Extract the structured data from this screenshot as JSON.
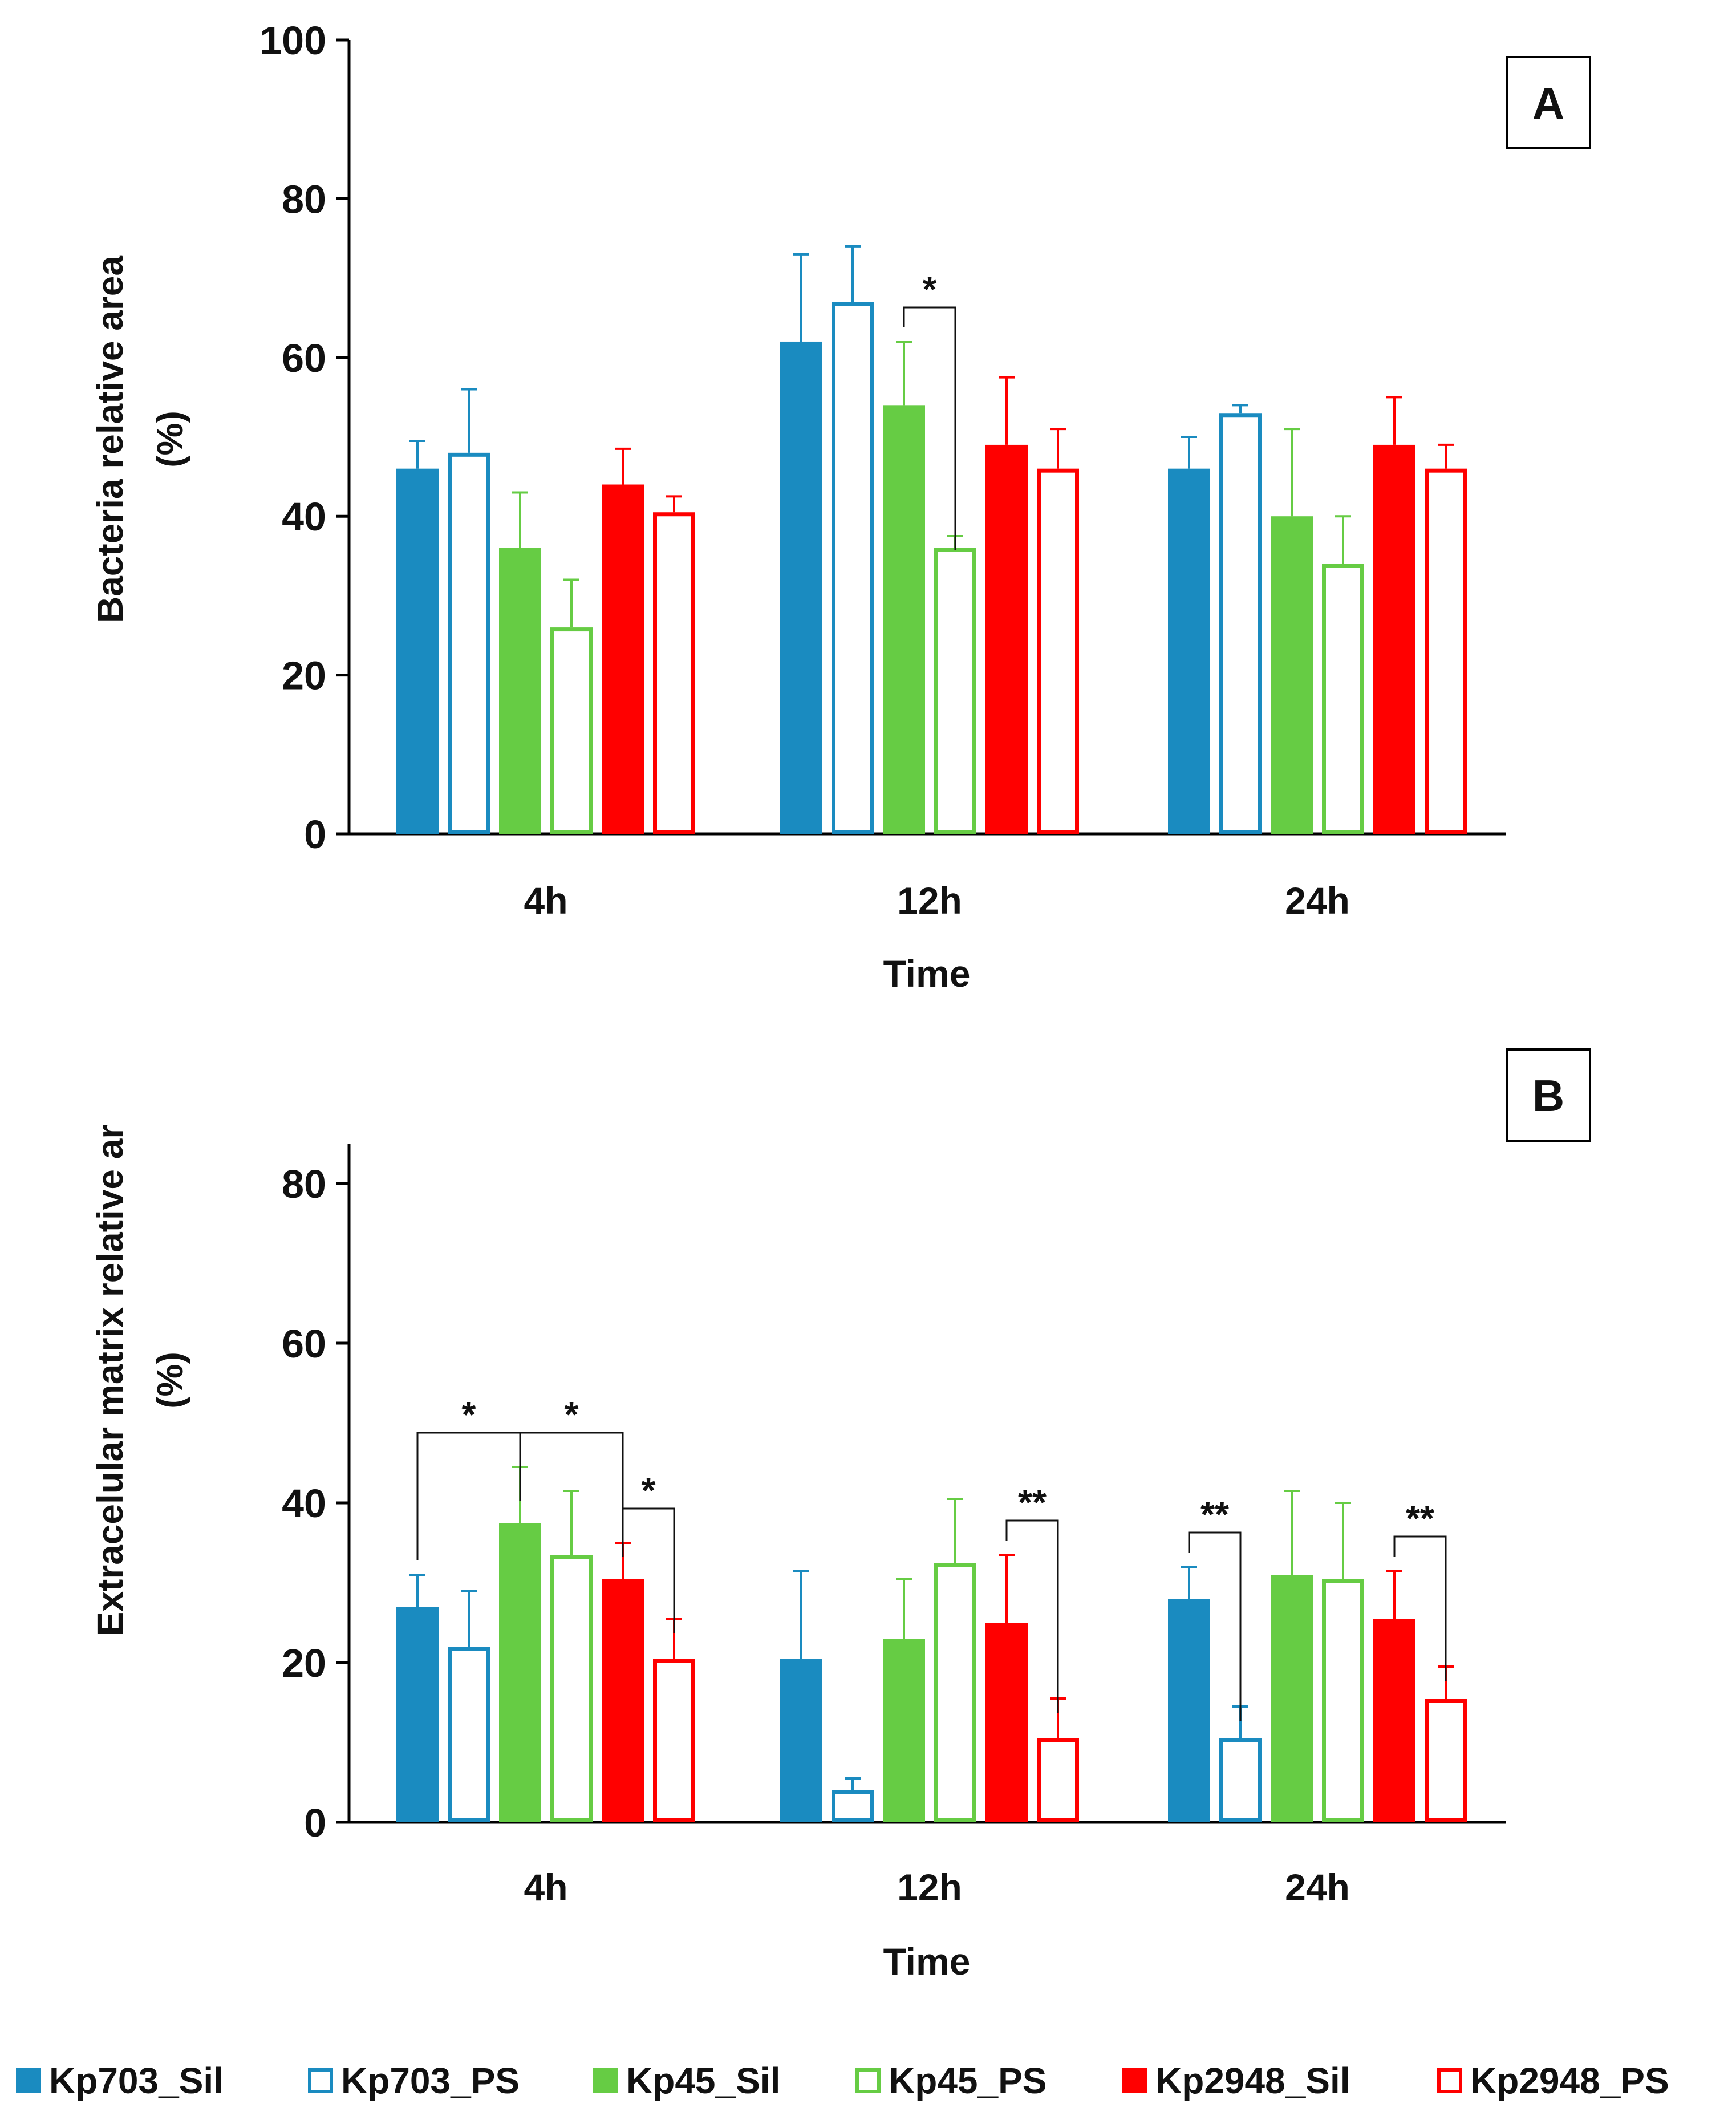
{
  "figure": {
    "legend": [
      {
        "key": "Kp703_Sil",
        "label": "Kp703_Sil",
        "color": "#1a8bc0",
        "filled": true
      },
      {
        "key": "Kp703_PS",
        "label": "Kp703_PS",
        "color": "#1a8bc0",
        "filled": false
      },
      {
        "key": "Kp45_Sil",
        "label": "Kp45_Sil",
        "color": "#66cc44",
        "filled": true
      },
      {
        "key": "Kp45_PS",
        "label": "Kp45_PS",
        "color": "#66cc44",
        "filled": false
      },
      {
        "key": "Kp2948_Sil",
        "label": "Kp2948_Sil",
        "color": "#ff0000",
        "filled": true
      },
      {
        "key": "Kp2948_PS",
        "label": "Kp2948_PS",
        "color": "#ff0000",
        "filled": false
      }
    ]
  },
  "chart_data": [
    {
      "type": "bar",
      "panel_label": "A",
      "categories": [
        "4h",
        "12h",
        "24h"
      ],
      "xlabel": "Time",
      "ylabel_line1": "Bacteria  relative area",
      "ylabel_line2": "(%)",
      "ylim": [
        0,
        100
      ],
      "yticks": [
        0,
        20,
        40,
        60,
        80,
        100
      ],
      "series": [
        {
          "name": "Kp703_Sil",
          "values": [
            46,
            62,
            46
          ],
          "errors": [
            3.5,
            11,
            4
          ]
        },
        {
          "name": "Kp703_PS",
          "values": [
            48,
            67,
            53
          ],
          "errors": [
            8,
            7,
            1
          ]
        },
        {
          "name": "Kp45_Sil",
          "values": [
            36,
            54,
            40
          ],
          "errors": [
            7,
            8,
            11
          ]
        },
        {
          "name": "Kp45_PS",
          "values": [
            26,
            36,
            34
          ],
          "errors": [
            6,
            1.5,
            6
          ]
        },
        {
          "name": "Kp2948_Sil",
          "values": [
            44,
            49,
            49
          ],
          "errors": [
            4.5,
            8.5,
            6
          ]
        },
        {
          "name": "Kp2948_PS",
          "values": [
            40.5,
            46,
            46
          ],
          "errors": [
            2,
            5,
            3
          ]
        }
      ],
      "significance": [
        {
          "group": 1,
          "from": 2,
          "to": 3,
          "label": "*"
        }
      ]
    },
    {
      "type": "bar",
      "panel_label": "B",
      "categories": [
        "4h",
        "12h",
        "24h"
      ],
      "xlabel": "Time",
      "ylabel_line1": "Extracelular matrix  relative ar",
      "ylabel_line2": "(%)",
      "ylim": [
        0,
        85
      ],
      "yticks": [
        0,
        20,
        40,
        60,
        80
      ],
      "series": [
        {
          "name": "Kp703_Sil",
          "values": [
            27,
            20.5,
            28
          ],
          "errors": [
            4,
            11,
            4
          ]
        },
        {
          "name": "Kp703_PS",
          "values": [
            22,
            4,
            10.5
          ],
          "errors": [
            7,
            1.5,
            4
          ]
        },
        {
          "name": "Kp45_Sil",
          "values": [
            37.5,
            23,
            31
          ],
          "errors": [
            7,
            7.5,
            10.5
          ]
        },
        {
          "name": "Kp45_PS",
          "values": [
            33.5,
            32.5,
            30.5
          ],
          "errors": [
            8,
            8,
            9.5
          ]
        },
        {
          "name": "Kp2948_Sil",
          "values": [
            30.5,
            25,
            25.5
          ],
          "errors": [
            4.5,
            8.5,
            6
          ]
        },
        {
          "name": "Kp2948_PS",
          "values": [
            20.5,
            10.5,
            15.5
          ],
          "errors": [
            5,
            5,
            4
          ]
        }
      ],
      "significance": [
        {
          "group": 0,
          "from": 0,
          "to": 4,
          "mid": 2,
          "label_left": "*",
          "label_right": "*"
        },
        {
          "group": 0,
          "from": 4,
          "to": 5,
          "label": "*"
        },
        {
          "group": 1,
          "from": 4,
          "to": 5,
          "label": "**"
        },
        {
          "group": 2,
          "from": 0,
          "to": 1,
          "label": "**"
        },
        {
          "group": 2,
          "from": 4,
          "to": 5,
          "label": "**"
        }
      ]
    }
  ]
}
